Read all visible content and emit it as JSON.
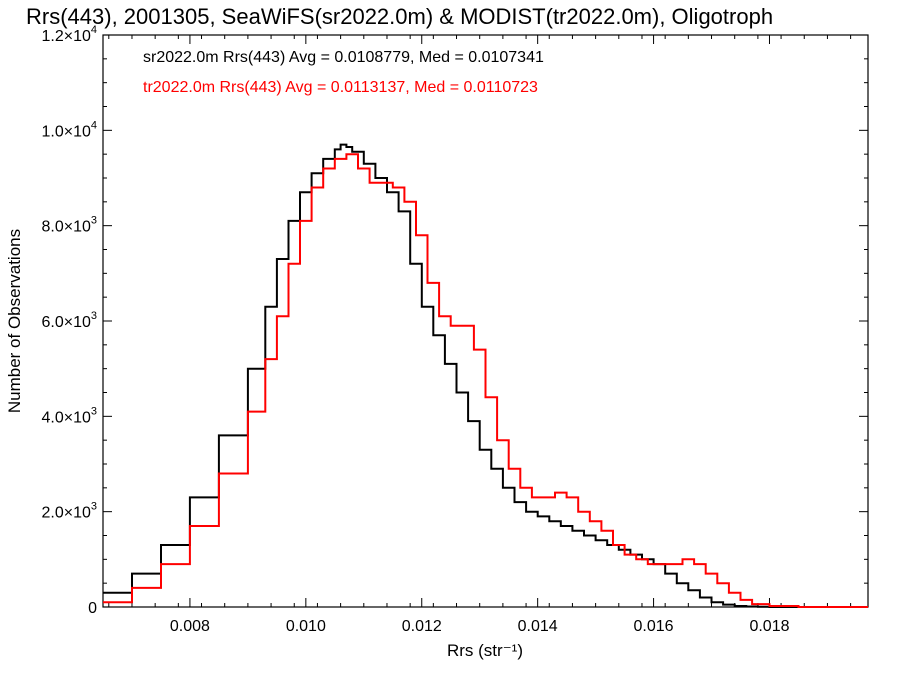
{
  "chart_data": {
    "type": "line",
    "title": "Rrs(443), 2001305, SeaWiFS(sr2022.0m) & MODIST(tr2022.0m), Oligotroph",
    "xlabel": "Rrs (str⁻¹)",
    "ylabel": "Number of Observations",
    "xlim": [
      0.0065,
      0.0197
    ],
    "ylim": [
      0,
      12000
    ],
    "x_ticks": [
      0.008,
      0.01,
      0.012,
      0.014,
      0.016,
      0.018
    ],
    "x_tick_labels": [
      "0.008",
      "0.010",
      "0.012",
      "0.014",
      "0.016",
      "0.018"
    ],
    "y_ticks": [
      0,
      2000,
      4000,
      6000,
      8000,
      10000,
      12000
    ],
    "y_tick_labels": [
      {
        "mantissa": "0",
        "exp": ""
      },
      {
        "mantissa": "2.0×10",
        "exp": "3"
      },
      {
        "mantissa": "4.0×10",
        "exp": "3"
      },
      {
        "mantissa": "6.0×10",
        "exp": "3"
      },
      {
        "mantissa": "8.0×10",
        "exp": "3"
      },
      {
        "mantissa": "1.0×10",
        "exp": "4"
      },
      {
        "mantissa": "1.2×10",
        "exp": "4"
      }
    ],
    "grid": false,
    "legend_position": "top-left",
    "series": [
      {
        "name": "sr2022.0m",
        "color": "#000000",
        "label": "sr2022.0m Rrs(443) Avg = 0.0108779, Med = 0.0107341",
        "x": [
          0.0065,
          0.007,
          0.0075,
          0.008,
          0.0085,
          0.009,
          0.0093,
          0.0095,
          0.0097,
          0.0099,
          0.0101,
          0.0103,
          0.0105,
          0.0106,
          0.0107,
          0.0108,
          0.011,
          0.0112,
          0.0114,
          0.0116,
          0.0118,
          0.012,
          0.0122,
          0.0124,
          0.0126,
          0.0128,
          0.013,
          0.0132,
          0.0134,
          0.0136,
          0.0138,
          0.014,
          0.0142,
          0.0144,
          0.0146,
          0.0148,
          0.015,
          0.0152,
          0.0154,
          0.0156,
          0.0158,
          0.016,
          0.0162,
          0.0164,
          0.0166,
          0.0168,
          0.017,
          0.0172,
          0.0174,
          0.0176,
          0.0178,
          0.018,
          0.0185,
          0.0197
        ],
        "y": [
          300,
          700,
          1300,
          2300,
          3600,
          5000,
          6300,
          7300,
          8100,
          8700,
          9100,
          9400,
          9600,
          9700,
          9650,
          9550,
          9300,
          9000,
          8700,
          8300,
          7200,
          6300,
          5700,
          5100,
          4500,
          3900,
          3300,
          2900,
          2500,
          2200,
          2000,
          1900,
          1800,
          1700,
          1600,
          1500,
          1400,
          1300,
          1200,
          1100,
          1000,
          900,
          700,
          500,
          350,
          200,
          100,
          50,
          20,
          10,
          5,
          0,
          0,
          0
        ]
      },
      {
        "name": "tr2022.0m",
        "color": "#ff0000",
        "label": "tr2022.0m Rrs(443) Avg = 0.0113137, Med = 0.0110723",
        "x": [
          0.0065,
          0.007,
          0.0075,
          0.008,
          0.0085,
          0.009,
          0.0093,
          0.0095,
          0.0097,
          0.0099,
          0.0101,
          0.0103,
          0.0105,
          0.0107,
          0.0109,
          0.0111,
          0.0113,
          0.0115,
          0.0117,
          0.0119,
          0.0121,
          0.0123,
          0.0125,
          0.0127,
          0.0129,
          0.0131,
          0.0133,
          0.0135,
          0.0137,
          0.0139,
          0.0141,
          0.0143,
          0.0145,
          0.0147,
          0.0149,
          0.0151,
          0.0153,
          0.0155,
          0.0157,
          0.0159,
          0.0161,
          0.0163,
          0.0165,
          0.0167,
          0.0169,
          0.0171,
          0.0173,
          0.0175,
          0.0177,
          0.018,
          0.0185,
          0.0197
        ],
        "y": [
          100,
          400,
          900,
          1700,
          2800,
          4100,
          5200,
          6100,
          7200,
          8100,
          8800,
          9200,
          9400,
          9500,
          9200,
          8900,
          8900,
          8800,
          8500,
          7800,
          6800,
          6100,
          5900,
          5900,
          5400,
          4400,
          3500,
          2900,
          2500,
          2300,
          2300,
          2400,
          2300,
          2000,
          1800,
          1600,
          1300,
          1100,
          1000,
          900,
          900,
          900,
          1000,
          900,
          700,
          500,
          300,
          150,
          60,
          20,
          0,
          0
        ]
      }
    ]
  }
}
